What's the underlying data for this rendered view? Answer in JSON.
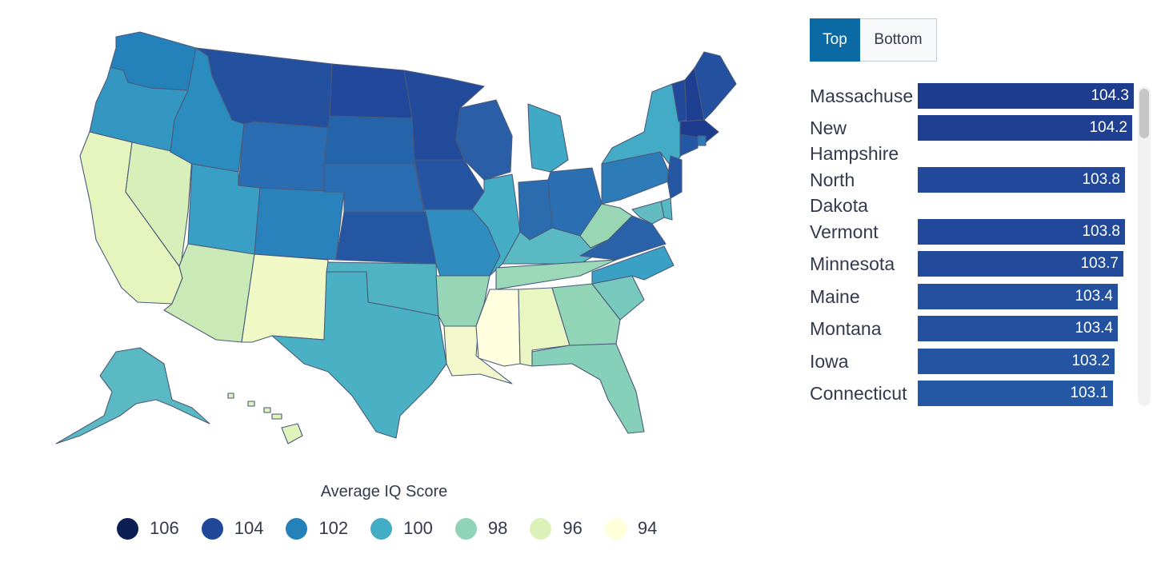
{
  "legend": {
    "title": "Average IQ Score",
    "items": [
      {
        "label": "106",
        "color": "#0d1e54"
      },
      {
        "label": "104",
        "color": "#1f4898"
      },
      {
        "label": "102",
        "color": "#2581ba"
      },
      {
        "label": "100",
        "color": "#42adc5"
      },
      {
        "label": "98",
        "color": "#8fd3b8"
      },
      {
        "label": "96",
        "color": "#dcf1b9"
      },
      {
        "label": "94",
        "color": "#ffffd9"
      }
    ]
  },
  "toggle": {
    "top_label": "Top",
    "bottom_label": "Bottom",
    "selected": "Top"
  },
  "ranking": {
    "max_value": 104.3,
    "items": [
      {
        "name": "Massachuse",
        "value": "104.3",
        "num": 104.3,
        "color": "#1d3c8e"
      },
      {
        "name": "New Hampshire",
        "value": "104.2",
        "num": 104.2,
        "color": "#1e3f92"
      },
      {
        "name": "North Dakota",
        "value": "103.8",
        "num": 103.8,
        "color": "#21489a"
      },
      {
        "name": "Vermont",
        "value": "103.8",
        "num": 103.8,
        "color": "#21489a"
      },
      {
        "name": "Minnesota",
        "value": "103.7",
        "num": 103.7,
        "color": "#224b9c"
      },
      {
        "name": "Maine",
        "value": "103.4",
        "num": 103.4,
        "color": "#23509f"
      },
      {
        "name": "Montana",
        "value": "103.4",
        "num": 103.4,
        "color": "#23509f"
      },
      {
        "name": "Iowa",
        "value": "103.2",
        "num": 103.2,
        "color": "#2454a2"
      },
      {
        "name": "Connecticut",
        "value": "103.1",
        "num": 103.1,
        "color": "#2457a4"
      }
    ]
  },
  "map": {
    "states": [
      {
        "name": "Washington",
        "color": "#2581ba"
      },
      {
        "name": "Oregon",
        "color": "#3397c2"
      },
      {
        "name": "California",
        "color": "#e6f5bd"
      },
      {
        "name": "Nevada",
        "color": "#d8efb9"
      },
      {
        "name": "Idaho",
        "color": "#2b8cbf"
      },
      {
        "name": "Montana",
        "color": "#23509f"
      },
      {
        "name": "Wyoming",
        "color": "#2a6db2"
      },
      {
        "name": "Utah",
        "color": "#3a9fc4"
      },
      {
        "name": "Arizona",
        "color": "#c9eab6"
      },
      {
        "name": "Colorado",
        "color": "#2a82bc"
      },
      {
        "name": "New Mexico",
        "color": "#f0f8c6"
      },
      {
        "name": "North Dakota",
        "color": "#21489a"
      },
      {
        "name": "South Dakota",
        "color": "#2464aa"
      },
      {
        "name": "Nebraska",
        "color": "#2a6db2"
      },
      {
        "name": "Kansas",
        "color": "#2456a2"
      },
      {
        "name": "Oklahoma",
        "color": "#4fb3c4"
      },
      {
        "name": "Texas",
        "color": "#4ab0c4"
      },
      {
        "name": "Minnesota",
        "color": "#224b9c"
      },
      {
        "name": "Iowa",
        "color": "#2454a2"
      },
      {
        "name": "Missouri",
        "color": "#2f8dc0"
      },
      {
        "name": "Arkansas",
        "color": "#96d6b6"
      },
      {
        "name": "Louisiana",
        "color": "#f3f9cc"
      },
      {
        "name": "Wisconsin",
        "color": "#2a5fa8"
      },
      {
        "name": "Illinois",
        "color": "#45acc5"
      },
      {
        "name": "Michigan",
        "color": "#40a9c5"
      },
      {
        "name": "Indiana",
        "color": "#2b6caf"
      },
      {
        "name": "Ohio",
        "color": "#2a6fb2"
      },
      {
        "name": "Kentucky",
        "color": "#5ab9c2"
      },
      {
        "name": "Tennessee",
        "color": "#9ad8b7"
      },
      {
        "name": "Mississippi",
        "color": "#ffffe0"
      },
      {
        "name": "Alabama",
        "color": "#eaf6c1"
      },
      {
        "name": "Georgia",
        "color": "#92d4b6"
      },
      {
        "name": "Florida",
        "color": "#86cfb9"
      },
      {
        "name": "South Carolina",
        "color": "#78c9bd"
      },
      {
        "name": "North Carolina",
        "color": "#3aa1c5"
      },
      {
        "name": "Virginia",
        "color": "#2a62aa"
      },
      {
        "name": "West Virginia",
        "color": "#99d6b4"
      },
      {
        "name": "Pennsylvania",
        "color": "#2d7cb8"
      },
      {
        "name": "New York",
        "color": "#43abc6"
      },
      {
        "name": "Vermont",
        "color": "#21489a"
      },
      {
        "name": "New Hampshire",
        "color": "#1e3f92"
      },
      {
        "name": "Maine",
        "color": "#23509f"
      },
      {
        "name": "Massachusetts",
        "color": "#1d3c8e"
      },
      {
        "name": "Rhode Island",
        "color": "#2d7bb8"
      },
      {
        "name": "Connecticut",
        "color": "#2457a4"
      },
      {
        "name": "New Jersey",
        "color": "#2456a2"
      },
      {
        "name": "Delaware",
        "color": "#57b7c3"
      },
      {
        "name": "Maryland",
        "color": "#62bcc1"
      },
      {
        "name": "Alaska",
        "color": "#5ab9c2"
      },
      {
        "name": "Hawaii",
        "color": "#dff3ba"
      }
    ]
  }
}
